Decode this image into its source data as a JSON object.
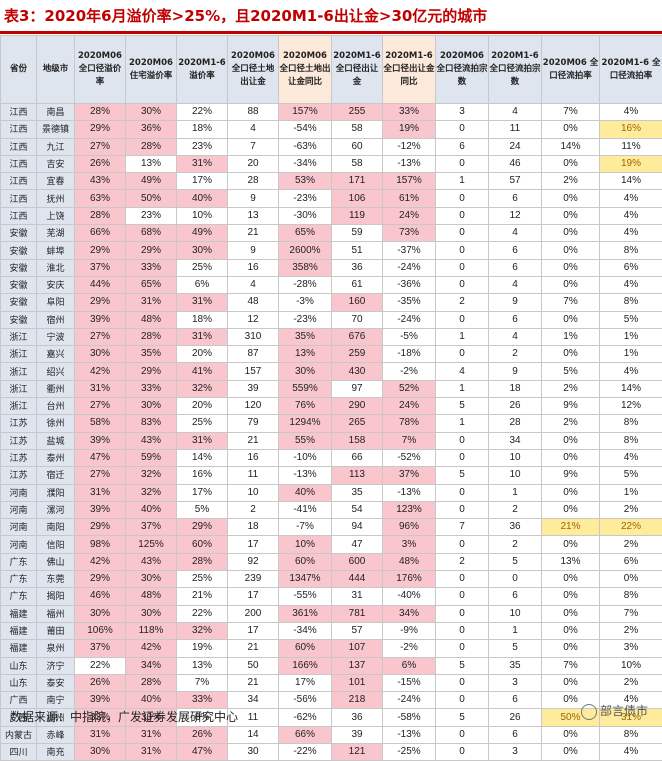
{
  "title": "表3：2020年6月溢价率>25%，且2020M1-6出让金>30亿元的城市",
  "headers": [
    "省份",
    "地级市",
    "2020M06 全口径溢价率",
    "2020M06 住宅溢价率",
    "2020M1-6 溢价率",
    "2020M06 全口径土地出让金",
    "2020M06 全口径土地出让金同比",
    "2020M1-6 全口径出让金",
    "2020M1-6 全口径出让金同比",
    "2020M06 全口径流拍宗数",
    "2020M1-6 全口径流拍宗数",
    "2020M06 全口径流拍率",
    "2020M1-6 全口径流拍率"
  ],
  "rows": [
    [
      "江西",
      "南昌",
      "28%",
      "30%",
      "22%",
      "88",
      "157%",
      "255",
      "33%",
      "3",
      "4",
      "7%",
      "4%"
    ],
    [
      "江西",
      "景德镇",
      "29%",
      "36%",
      "18%",
      "4",
      "-54%",
      "58",
      "19%",
      "0",
      "11",
      "0%",
      "16%"
    ],
    [
      "江西",
      "九江",
      "27%",
      "28%",
      "23%",
      "7",
      "-63%",
      "60",
      "-12%",
      "6",
      "24",
      "14%",
      "11%"
    ],
    [
      "江西",
      "吉安",
      "26%",
      "13%",
      "31%",
      "20",
      "-34%",
      "58",
      "-13%",
      "0",
      "46",
      "0%",
      "19%"
    ],
    [
      "江西",
      "宜春",
      "43%",
      "49%",
      "17%",
      "28",
      "53%",
      "171",
      "157%",
      "1",
      "57",
      "2%",
      "14%"
    ],
    [
      "江西",
      "抚州",
      "63%",
      "50%",
      "40%",
      "9",
      "-23%",
      "106",
      "61%",
      "0",
      "6",
      "0%",
      "4%"
    ],
    [
      "江西",
      "上饶",
      "28%",
      "23%",
      "10%",
      "13",
      "-30%",
      "119",
      "24%",
      "0",
      "12",
      "0%",
      "4%"
    ],
    [
      "安徽",
      "芜湖",
      "66%",
      "68%",
      "49%",
      "21",
      "65%",
      "59",
      "73%",
      "0",
      "4",
      "0%",
      "4%"
    ],
    [
      "安徽",
      "蚌埠",
      "29%",
      "29%",
      "30%",
      "9",
      "2600%",
      "51",
      "-37%",
      "0",
      "6",
      "0%",
      "8%"
    ],
    [
      "安徽",
      "淮北",
      "37%",
      "33%",
      "25%",
      "16",
      "358%",
      "36",
      "-24%",
      "0",
      "6",
      "0%",
      "6%"
    ],
    [
      "安徽",
      "安庆",
      "44%",
      "65%",
      "6%",
      "4",
      "-28%",
      "61",
      "-36%",
      "0",
      "4",
      "0%",
      "4%"
    ],
    [
      "安徽",
      "阜阳",
      "29%",
      "31%",
      "31%",
      "48",
      "-3%",
      "160",
      "-35%",
      "2",
      "9",
      "7%",
      "8%"
    ],
    [
      "安徽",
      "宿州",
      "39%",
      "48%",
      "18%",
      "12",
      "-23%",
      "70",
      "-24%",
      "0",
      "6",
      "0%",
      "5%"
    ],
    [
      "浙江",
      "宁波",
      "27%",
      "28%",
      "31%",
      "310",
      "35%",
      "676",
      "-5%",
      "1",
      "4",
      "1%",
      "1%"
    ],
    [
      "浙江",
      "嘉兴",
      "30%",
      "35%",
      "20%",
      "87",
      "13%",
      "259",
      "-18%",
      "0",
      "2",
      "0%",
      "1%"
    ],
    [
      "浙江",
      "绍兴",
      "42%",
      "29%",
      "41%",
      "157",
      "30%",
      "430",
      "-2%",
      "4",
      "9",
      "5%",
      "4%"
    ],
    [
      "浙江",
      "衢州",
      "31%",
      "33%",
      "32%",
      "39",
      "559%",
      "97",
      "52%",
      "1",
      "18",
      "2%",
      "14%"
    ],
    [
      "浙江",
      "台州",
      "27%",
      "30%",
      "20%",
      "120",
      "76%",
      "290",
      "24%",
      "5",
      "26",
      "9%",
      "12%"
    ],
    [
      "江苏",
      "徐州",
      "58%",
      "83%",
      "25%",
      "79",
      "1294%",
      "265",
      "78%",
      "1",
      "28",
      "2%",
      "8%"
    ],
    [
      "江苏",
      "盐城",
      "39%",
      "43%",
      "31%",
      "21",
      "55%",
      "158",
      "7%",
      "0",
      "34",
      "0%",
      "8%"
    ],
    [
      "江苏",
      "泰州",
      "47%",
      "59%",
      "14%",
      "16",
      "-10%",
      "66",
      "-52%",
      "0",
      "10",
      "0%",
      "4%"
    ],
    [
      "江苏",
      "宿迁",
      "27%",
      "32%",
      "16%",
      "11",
      "-13%",
      "113",
      "37%",
      "5",
      "10",
      "9%",
      "5%"
    ],
    [
      "河南",
      "濮阳",
      "31%",
      "32%",
      "17%",
      "10",
      "40%",
      "35",
      "-13%",
      "0",
      "1",
      "0%",
      "1%"
    ],
    [
      "河南",
      "漯河",
      "39%",
      "40%",
      "5%",
      "2",
      "-41%",
      "54",
      "123%",
      "0",
      "2",
      "0%",
      "2%"
    ],
    [
      "河南",
      "南阳",
      "29%",
      "37%",
      "29%",
      "18",
      "-7%",
      "94",
      "96%",
      "7",
      "36",
      "21%",
      "22%"
    ],
    [
      "河南",
      "信阳",
      "98%",
      "125%",
      "60%",
      "17",
      "10%",
      "47",
      "3%",
      "0",
      "2",
      "0%",
      "2%"
    ],
    [
      "广东",
      "佛山",
      "42%",
      "43%",
      "28%",
      "92",
      "60%",
      "600",
      "48%",
      "2",
      "5",
      "13%",
      "6%"
    ],
    [
      "广东",
      "东莞",
      "29%",
      "30%",
      "25%",
      "239",
      "1347%",
      "444",
      "176%",
      "0",
      "0",
      "0%",
      "0%"
    ],
    [
      "广东",
      "揭阳",
      "46%",
      "48%",
      "21%",
      "17",
      "-55%",
      "31",
      "-40%",
      "0",
      "6",
      "0%",
      "8%"
    ],
    [
      "福建",
      "福州",
      "30%",
      "30%",
      "22%",
      "200",
      "361%",
      "781",
      "34%",
      "0",
      "10",
      "0%",
      "7%"
    ],
    [
      "福建",
      "莆田",
      "106%",
      "118%",
      "32%",
      "17",
      "-34%",
      "57",
      "-9%",
      "0",
      "1",
      "0%",
      "2%"
    ],
    [
      "福建",
      "泉州",
      "37%",
      "42%",
      "19%",
      "21",
      "60%",
      "107",
      "-2%",
      "0",
      "5",
      "0%",
      "3%"
    ],
    [
      "山东",
      "济宁",
      "22%",
      "34%",
      "13%",
      "50",
      "166%",
      "137",
      "6%",
      "5",
      "35",
      "7%",
      "10%"
    ],
    [
      "山东",
      "泰安",
      "26%",
      "28%",
      "7%",
      "21",
      "17%",
      "101",
      "-15%",
      "0",
      "3",
      "0%",
      "2%"
    ],
    [
      "广西",
      "南宁",
      "39%",
      "40%",
      "33%",
      "34",
      "-56%",
      "218",
      "-24%",
      "0",
      "6",
      "0%",
      "4%"
    ],
    [
      "广西",
      "柳州",
      "33%",
      "33%",
      "8%",
      "11",
      "-62%",
      "36",
      "-58%",
      "5",
      "26",
      "50%",
      "31%"
    ],
    [
      "内蒙古",
      "赤峰",
      "31%",
      "31%",
      "26%",
      "14",
      "66%",
      "39",
      "-13%",
      "0",
      "6",
      "0%",
      "8%"
    ],
    [
      "四川",
      "南充",
      "30%",
      "31%",
      "47%",
      "30",
      "-22%",
      "121",
      "-25%",
      "0",
      "3",
      "0%",
      "4%"
    ]
  ],
  "highlight": {
    "pink": [
      [
        0,
        2
      ],
      [
        0,
        3
      ],
      [
        0,
        6
      ],
      [
        0,
        7
      ],
      [
        0,
        8
      ],
      [
        1,
        2
      ],
      [
        1,
        3
      ],
      [
        1,
        8
      ],
      [
        2,
        2
      ],
      [
        2,
        3
      ],
      [
        3,
        2
      ],
      [
        3,
        4
      ],
      [
        4,
        2
      ],
      [
        4,
        3
      ],
      [
        4,
        6
      ],
      [
        4,
        7
      ],
      [
        4,
        8
      ],
      [
        5,
        2
      ],
      [
        5,
        3
      ],
      [
        5,
        4
      ],
      [
        5,
        7
      ],
      [
        5,
        8
      ],
      [
        6,
        2
      ],
      [
        6,
        7
      ],
      [
        6,
        8
      ],
      [
        7,
        2
      ],
      [
        7,
        3
      ],
      [
        7,
        4
      ],
      [
        7,
        6
      ],
      [
        7,
        8
      ],
      [
        8,
        2
      ],
      [
        8,
        3
      ],
      [
        8,
        4
      ],
      [
        8,
        6
      ],
      [
        9,
        2
      ],
      [
        9,
        3
      ],
      [
        9,
        6
      ],
      [
        10,
        2
      ],
      [
        10,
        3
      ],
      [
        11,
        2
      ],
      [
        11,
        3
      ],
      [
        11,
        4
      ],
      [
        11,
        7
      ],
      [
        12,
        2
      ],
      [
        12,
        3
      ],
      [
        13,
        2
      ],
      [
        13,
        3
      ],
      [
        13,
        4
      ],
      [
        13,
        6
      ],
      [
        13,
        7
      ],
      [
        14,
        2
      ],
      [
        14,
        3
      ],
      [
        14,
        6
      ],
      [
        14,
        7
      ],
      [
        15,
        2
      ],
      [
        15,
        3
      ],
      [
        15,
        4
      ],
      [
        15,
        6
      ],
      [
        15,
        7
      ],
      [
        16,
        2
      ],
      [
        16,
        3
      ],
      [
        16,
        4
      ],
      [
        16,
        6
      ],
      [
        16,
        8
      ],
      [
        17,
        2
      ],
      [
        17,
        3
      ],
      [
        17,
        6
      ],
      [
        17,
        7
      ],
      [
        17,
        8
      ],
      [
        18,
        2
      ],
      [
        18,
        3
      ],
      [
        18,
        6
      ],
      [
        18,
        7
      ],
      [
        18,
        8
      ],
      [
        19,
        2
      ],
      [
        19,
        3
      ],
      [
        19,
        4
      ],
      [
        19,
        6
      ],
      [
        19,
        7
      ],
      [
        19,
        8
      ],
      [
        20,
        2
      ],
      [
        20,
        3
      ],
      [
        21,
        2
      ],
      [
        21,
        3
      ],
      [
        21,
        7
      ],
      [
        21,
        8
      ],
      [
        22,
        2
      ],
      [
        22,
        3
      ],
      [
        22,
        6
      ],
      [
        23,
        2
      ],
      [
        23,
        3
      ],
      [
        23,
        8
      ],
      [
        24,
        2
      ],
      [
        24,
        3
      ],
      [
        24,
        4
      ],
      [
        24,
        8
      ],
      [
        25,
        2
      ],
      [
        25,
        3
      ],
      [
        25,
        4
      ],
      [
        25,
        6
      ],
      [
        25,
        8
      ],
      [
        26,
        2
      ],
      [
        26,
        3
      ],
      [
        26,
        4
      ],
      [
        26,
        6
      ],
      [
        26,
        7
      ],
      [
        26,
        8
      ],
      [
        27,
        2
      ],
      [
        27,
        3
      ],
      [
        27,
        6
      ],
      [
        27,
        7
      ],
      [
        27,
        8
      ],
      [
        28,
        2
      ],
      [
        28,
        3
      ],
      [
        29,
        2
      ],
      [
        29,
        3
      ],
      [
        29,
        6
      ],
      [
        29,
        7
      ],
      [
        29,
        8
      ],
      [
        30,
        2
      ],
      [
        30,
        3
      ],
      [
        30,
        4
      ],
      [
        31,
        2
      ],
      [
        31,
        3
      ],
      [
        31,
        6
      ],
      [
        31,
        7
      ],
      [
        32,
        3
      ],
      [
        32,
        6
      ],
      [
        32,
        7
      ],
      [
        32,
        8
      ],
      [
        33,
        2
      ],
      [
        33,
        3
      ],
      [
        33,
        7
      ],
      [
        34,
        2
      ],
      [
        34,
        3
      ],
      [
        34,
        4
      ],
      [
        34,
        7
      ],
      [
        35,
        2
      ],
      [
        35,
        3
      ],
      [
        36,
        2
      ],
      [
        36,
        3
      ],
      [
        36,
        4
      ],
      [
        36,
        6
      ],
      [
        37,
        2
      ],
      [
        37,
        3
      ],
      [
        37,
        4
      ],
      [
        37,
        7
      ]
    ],
    "yellow": [
      [
        1,
        12
      ],
      [
        3,
        12
      ],
      [
        24,
        11
      ],
      [
        24,
        12
      ],
      [
        35,
        11
      ],
      [
        35,
        12
      ]
    ]
  },
  "source": "数据来源：中指院，广发证券发展研究中心",
  "watermark": "部言债市",
  "colors": {
    "title": "#c00000",
    "header_bg": "#dfe5ef",
    "header_orange": "#fde9d9",
    "pink": "#f9c6ce",
    "yellow": "#ffeb9c"
  }
}
